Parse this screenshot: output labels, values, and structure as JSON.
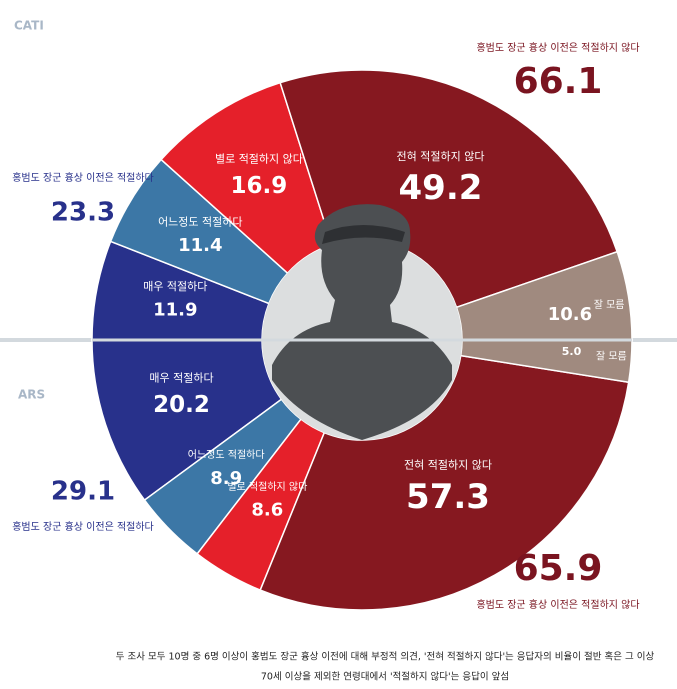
{
  "chart_data": [
    {
      "type": "half-donut",
      "half": "top",
      "source": "CATI",
      "categories": [
        "매우 적절하다",
        "어느정도 적절하다",
        "별로 적절하지 않다",
        "전혀 적절하지 않다",
        "잘 모름"
      ],
      "values": [
        11.9,
        11.4,
        16.9,
        49.2,
        10.6
      ],
      "colors": [
        "#28318b",
        "#3c77a6",
        "#e5202a",
        "#861820",
        "#a08a7f"
      ],
      "summaries": [
        {
          "label": "홍범도 장군 흉상 이전은 적절하다",
          "value": 23.3,
          "side": "left",
          "color": "#28318b"
        },
        {
          "label": "홍범도 장군 흉상 이전은 적절하지 않다",
          "value": 66.1,
          "side": "right",
          "color": "#7a1420"
        }
      ]
    },
    {
      "type": "half-donut",
      "half": "bottom",
      "source": "ARS",
      "categories": [
        "매우 적절하다",
        "어느정도 적절하다",
        "별로 적절하지 않다",
        "전혀 적절하지 않다",
        "잘 모름"
      ],
      "values": [
        20.2,
        8.9,
        8.6,
        57.3,
        5.0
      ],
      "value_labels": [
        "20.2",
        "8.9",
        "8.6",
        "57.3",
        "5.0"
      ],
      "colors": [
        "#28318b",
        "#3c77a6",
        "#e5202a",
        "#861820",
        "#a08a7f"
      ],
      "summaries": [
        {
          "label": "홍범도 장군 흉상 이전은 적절하다",
          "value": 29.1,
          "side": "left",
          "color": "#28318b"
        },
        {
          "label": "홍범도 장군 흉상 이전은 적절하지 않다",
          "value": 65.9,
          "side": "right",
          "color": "#7a1420"
        }
      ]
    }
  ],
  "footer": [
    "두 조사 모두 10명 중 6명 이상이 홍범도 장군 흉상 이전에 대해 부정적 의견, '전혀 적절하지 않다'는 응답자의 비율이 절반 혹은 그 이상",
    "70세 이상을 제외한 연령대에서 '적절하지 않다'는 응답이 앞섬"
  ]
}
